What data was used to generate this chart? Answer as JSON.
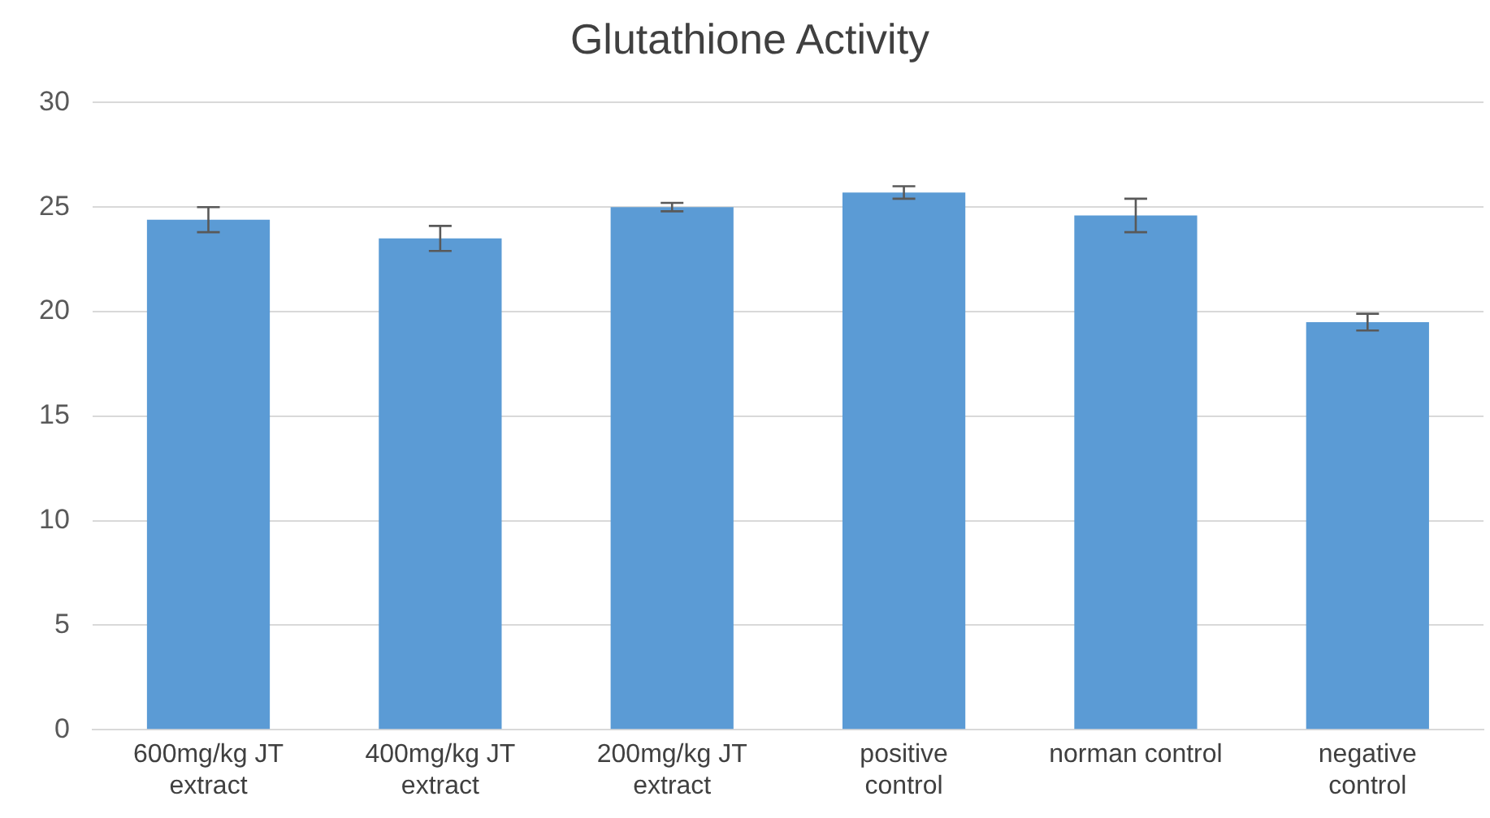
{
  "chart_data": {
    "type": "bar",
    "title": "Glutathione Activity",
    "categories": [
      "600mg/kg JT extract",
      "400mg/kg JT extract",
      "200mg/kg JT extract",
      "positive control",
      "norman control",
      "negative control"
    ],
    "values": [
      24.4,
      23.5,
      25.0,
      25.7,
      24.6,
      19.5
    ],
    "errors": [
      0.6,
      0.6,
      0.2,
      0.3,
      0.8,
      0.4
    ],
    "color": "#5b9bd5",
    "ylim": [
      0,
      30
    ],
    "yticks": [
      0,
      5,
      10,
      15,
      20,
      25,
      30
    ],
    "grid": "y",
    "legend": false
  }
}
